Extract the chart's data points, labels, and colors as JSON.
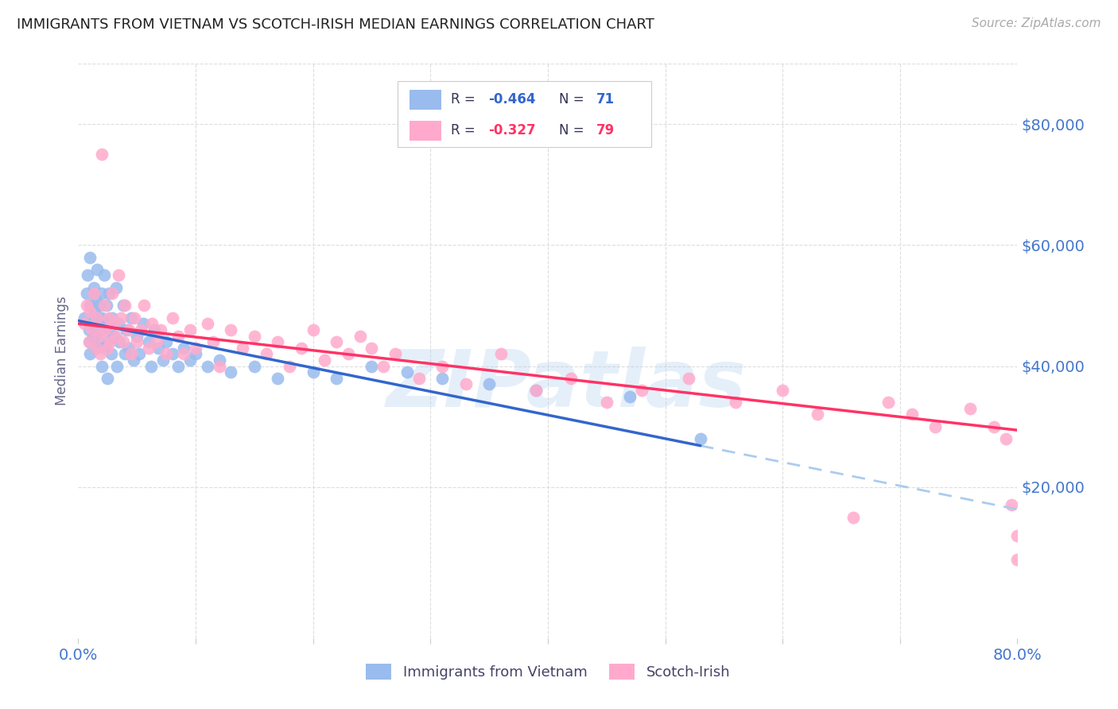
{
  "title": "IMMIGRANTS FROM VIETNAM VS SCOTCH-IRISH MEDIAN EARNINGS CORRELATION CHART",
  "source": "Source: ZipAtlas.com",
  "ylabel": "Median Earnings",
  "y_tick_labels": [
    "$20,000",
    "$40,000",
    "$60,000",
    "$80,000"
  ],
  "y_tick_values": [
    20000,
    40000,
    60000,
    80000
  ],
  "ylim": [
    -5000,
    90000
  ],
  "xlim": [
    0.0,
    0.8
  ],
  "color_blue": "#99BBEE",
  "color_pink": "#FFAACC",
  "color_blue_line": "#3366CC",
  "color_pink_line": "#FF3366",
  "color_blue_dash": "#AACCEE",
  "color_axis": "#4477CC",
  "watermark": "ZIPatlas",
  "blue_scatter_x": [
    0.005,
    0.007,
    0.008,
    0.009,
    0.01,
    0.01,
    0.01,
    0.01,
    0.012,
    0.013,
    0.013,
    0.014,
    0.015,
    0.015,
    0.016,
    0.017,
    0.018,
    0.018,
    0.019,
    0.02,
    0.02,
    0.02,
    0.022,
    0.022,
    0.023,
    0.024,
    0.025,
    0.025,
    0.026,
    0.027,
    0.028,
    0.029,
    0.03,
    0.032,
    0.033,
    0.034,
    0.035,
    0.038,
    0.04,
    0.041,
    0.043,
    0.045,
    0.047,
    0.05,
    0.052,
    0.055,
    0.06,
    0.062,
    0.065,
    0.068,
    0.072,
    0.075,
    0.08,
    0.085,
    0.09,
    0.095,
    0.1,
    0.11,
    0.12,
    0.13,
    0.15,
    0.17,
    0.2,
    0.22,
    0.25,
    0.28,
    0.31,
    0.35,
    0.39,
    0.47,
    0.53
  ],
  "blue_scatter_y": [
    48000,
    52000,
    55000,
    46000,
    50000,
    44000,
    42000,
    58000,
    47000,
    53000,
    45000,
    49000,
    51000,
    43000,
    56000,
    48000,
    44000,
    50000,
    46000,
    52000,
    40000,
    48000,
    55000,
    43000,
    47000,
    50000,
    44000,
    38000,
    52000,
    46000,
    42000,
    48000,
    45000,
    53000,
    40000,
    47000,
    44000,
    50000,
    42000,
    46000,
    43000,
    48000,
    41000,
    45000,
    42000,
    47000,
    44000,
    40000,
    46000,
    43000,
    41000,
    44000,
    42000,
    40000,
    43000,
    41000,
    42000,
    40000,
    41000,
    39000,
    40000,
    38000,
    39000,
    38000,
    40000,
    39000,
    38000,
    37000,
    36000,
    35000,
    28000
  ],
  "pink_scatter_x": [
    0.005,
    0.007,
    0.009,
    0.01,
    0.012,
    0.013,
    0.015,
    0.016,
    0.018,
    0.019,
    0.02,
    0.022,
    0.023,
    0.025,
    0.026,
    0.027,
    0.029,
    0.03,
    0.032,
    0.034,
    0.036,
    0.038,
    0.04,
    0.043,
    0.045,
    0.048,
    0.05,
    0.053,
    0.056,
    0.06,
    0.063,
    0.067,
    0.07,
    0.075,
    0.08,
    0.085,
    0.09,
    0.095,
    0.1,
    0.11,
    0.115,
    0.12,
    0.13,
    0.14,
    0.15,
    0.16,
    0.17,
    0.18,
    0.19,
    0.2,
    0.21,
    0.22,
    0.23,
    0.24,
    0.25,
    0.26,
    0.27,
    0.29,
    0.31,
    0.33,
    0.36,
    0.39,
    0.42,
    0.45,
    0.48,
    0.52,
    0.56,
    0.6,
    0.63,
    0.66,
    0.69,
    0.71,
    0.73,
    0.76,
    0.78,
    0.79,
    0.795,
    0.8,
    0.8
  ],
  "pink_scatter_y": [
    47000,
    50000,
    44000,
    49000,
    46000,
    52000,
    43000,
    48000,
    45000,
    42000,
    75000,
    50000,
    46000,
    43000,
    48000,
    44000,
    52000,
    47000,
    45000,
    55000,
    48000,
    44000,
    50000,
    46000,
    42000,
    48000,
    44000,
    46000,
    50000,
    43000,
    47000,
    44000,
    46000,
    42000,
    48000,
    45000,
    42000,
    46000,
    43000,
    47000,
    44000,
    40000,
    46000,
    43000,
    45000,
    42000,
    44000,
    40000,
    43000,
    46000,
    41000,
    44000,
    42000,
    45000,
    43000,
    40000,
    42000,
    38000,
    40000,
    37000,
    42000,
    36000,
    38000,
    34000,
    36000,
    38000,
    34000,
    36000,
    32000,
    15000,
    34000,
    32000,
    30000,
    33000,
    30000,
    28000,
    17000,
    12000,
    8000
  ]
}
